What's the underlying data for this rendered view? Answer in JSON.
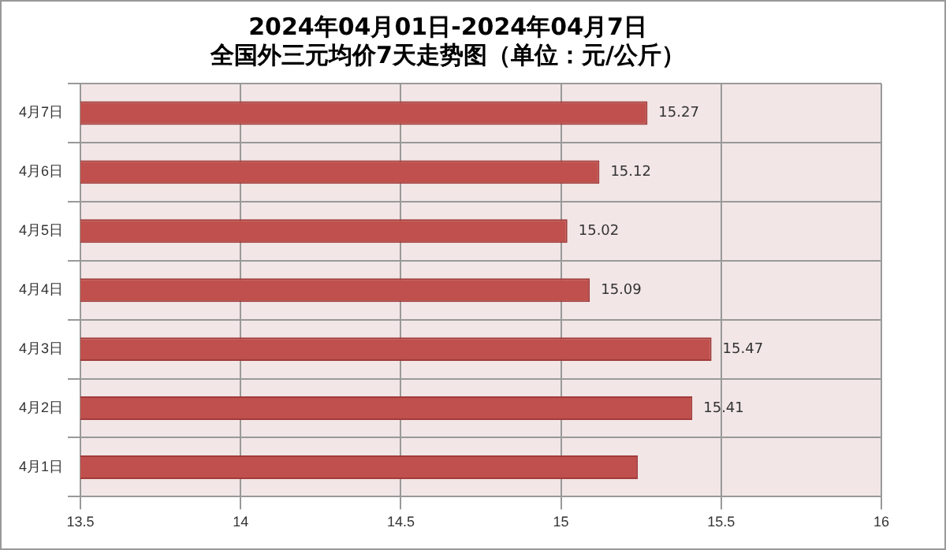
{
  "chart_data": {
    "type": "bar",
    "orientation": "horizontal",
    "title": [
      "2024年04月01日-2024年04月7日",
      "全国外三元均价7天走势图（单位：元/公斤）"
    ],
    "categories": [
      "4月7日",
      "4月6日",
      "4月5日",
      "4月4日",
      "4月3日",
      "4月2日",
      "4月1日"
    ],
    "values": [
      15.27,
      15.12,
      15.02,
      15.09,
      15.47,
      15.41,
      15.24
    ],
    "value_labels": [
      "15.27",
      "15.12",
      "15.02",
      "15.09",
      "15.47",
      "15.41",
      null
    ],
    "color": "#c0504d",
    "xlim": [
      13.5,
      16
    ],
    "xticks": [
      13.5,
      14,
      14.5,
      15,
      15.5,
      16
    ],
    "grid": true,
    "legend": false
  }
}
